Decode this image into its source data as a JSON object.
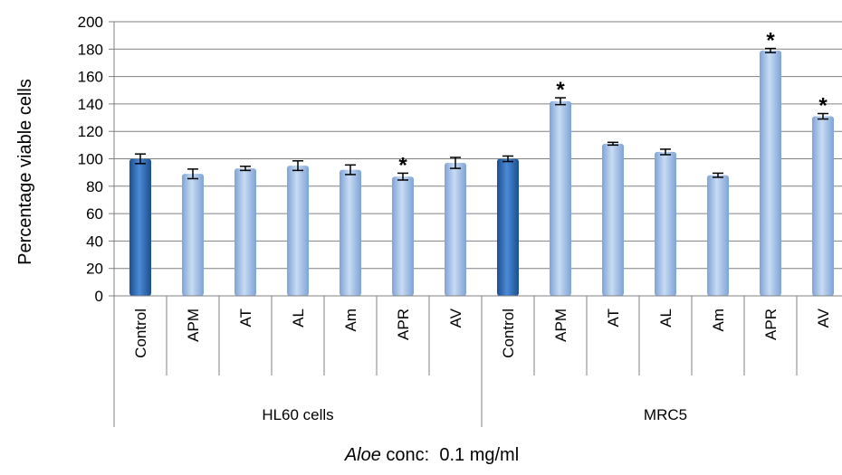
{
  "chart_data": {
    "type": "bar",
    "ylabel": "Percentage viable cells",
    "xlabel_italic": "Aloe",
    "xlabel_rest": " conc:  0.1 mg/ml",
    "ylim": [
      0,
      200
    ],
    "yticks": [
      0,
      20,
      40,
      60,
      80,
      100,
      120,
      140,
      160,
      180,
      200
    ],
    "grid": true,
    "groups": [
      {
        "name": "HL60 cells",
        "count": 7
      },
      {
        "name": "MRC5",
        "count": 7
      }
    ],
    "bars": [
      {
        "label": "Control",
        "value": 100,
        "error": 3.5,
        "control": true,
        "sig": false
      },
      {
        "label": "APM",
        "value": 89,
        "error": 3.5,
        "control": false,
        "sig": false
      },
      {
        "label": "AT",
        "value": 93,
        "error": 1.5,
        "control": false,
        "sig": false
      },
      {
        "label": "AL",
        "value": 95,
        "error": 3.5,
        "control": false,
        "sig": false
      },
      {
        "label": "Am",
        "value": 92,
        "error": 3.5,
        "control": false,
        "sig": false
      },
      {
        "label": "APR",
        "value": 87,
        "error": 2.5,
        "control": false,
        "sig": true
      },
      {
        "label": "AV",
        "value": 97,
        "error": 4,
        "control": false,
        "sig": false
      },
      {
        "label": "Control",
        "value": 100,
        "error": 2,
        "control": true,
        "sig": false
      },
      {
        "label": "APM",
        "value": 142,
        "error": 2.5,
        "control": false,
        "sig": true
      },
      {
        "label": "AT",
        "value": 111,
        "error": 1,
        "control": false,
        "sig": false
      },
      {
        "label": "AL",
        "value": 105,
        "error": 2,
        "control": false,
        "sig": false
      },
      {
        "label": "Am",
        "value": 88,
        "error": 1.5,
        "control": false,
        "sig": false
      },
      {
        "label": "APR",
        "value": 179,
        "error": 1.5,
        "control": false,
        "sig": true
      },
      {
        "label": "AV",
        "value": 131,
        "error": 2,
        "control": false,
        "sig": true
      }
    ],
    "sig_marker": "*",
    "colors": {
      "control_bar": "#2e6cb8",
      "treatment_bar": "#a9c4e8",
      "grid": "#808080",
      "axis": "#808080"
    }
  }
}
